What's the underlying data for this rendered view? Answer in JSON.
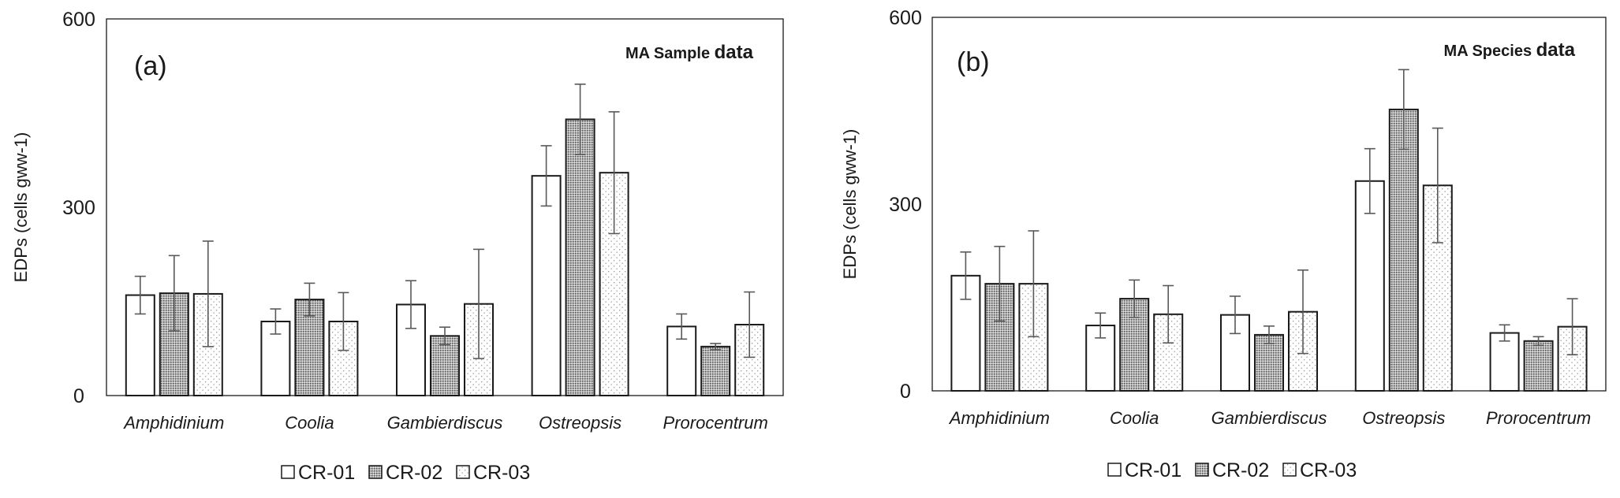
{
  "chart_data": [
    {
      "type": "bar",
      "panel_label": "(a)",
      "annotation": "MA Sample data",
      "ylabel": "EDPs (cells gww-1)",
      "yticks": [
        "600",
        "300",
        "0"
      ],
      "ylim": [
        0,
        600
      ],
      "categories": [
        "Amphidinium",
        "Coolia",
        "Gambierdiscus",
        "Ostreopsis",
        "Prorocentrum"
      ],
      "legend_position": "bottom-center",
      "series": [
        {
          "name": "CR-01",
          "pattern": "white",
          "values": [
            160,
            118,
            145,
            350,
            110
          ],
          "errors": [
            30,
            20,
            38,
            48,
            20
          ]
        },
        {
          "name": "CR-02",
          "pattern": "dense-dots",
          "values": [
            163,
            153,
            95,
            440,
            78
          ],
          "errors": [
            60,
            26,
            14,
            56,
            5
          ]
        },
        {
          "name": "CR-03",
          "pattern": "sparse-dots",
          "values": [
            162,
            118,
            146,
            355,
            113
          ],
          "errors": [
            84,
            46,
            87,
            97,
            52
          ]
        }
      ]
    },
    {
      "type": "bar",
      "panel_label": "(b)",
      "annotation": "MA Species data",
      "ylabel": "EDPs (cells gww-1)",
      "yticks": [
        "600",
        "300",
        "0"
      ],
      "ylim": [
        0,
        600
      ],
      "categories": [
        "Amphidinium",
        "Coolia",
        "Gambierdiscus",
        "Ostreopsis",
        "Prorocentrum"
      ],
      "legend_position": "bottom-center",
      "series": [
        {
          "name": "CR-01",
          "pattern": "white",
          "values": [
            185,
            105,
            122,
            337,
            93
          ],
          "errors": [
            38,
            20,
            30,
            52,
            13
          ]
        },
        {
          "name": "CR-02",
          "pattern": "dense-dots",
          "values": [
            172,
            148,
            90,
            452,
            80
          ],
          "errors": [
            60,
            30,
            14,
            64,
            7
          ]
        },
        {
          "name": "CR-03",
          "pattern": "sparse-dots",
          "values": [
            172,
            123,
            127,
            330,
            103
          ],
          "errors": [
            85,
            46,
            67,
            92,
            45
          ]
        }
      ]
    }
  ]
}
